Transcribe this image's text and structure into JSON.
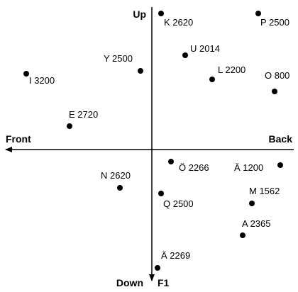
{
  "axes": {
    "up": "Up",
    "down": "Down",
    "front": "Front",
    "back": "Back",
    "down_suffix": "F1"
  },
  "points": [
    {
      "label": "K 2620"
    },
    {
      "label": "P 2500"
    },
    {
      "label": "U 2014"
    },
    {
      "label": "Y 2500"
    },
    {
      "label": "L 2200"
    },
    {
      "label": "I 3200"
    },
    {
      "label": "O 800"
    },
    {
      "label": "E 2720"
    },
    {
      "label": "Ö 2266"
    },
    {
      "label": "Ä 1200"
    },
    {
      "label": "N 2620"
    },
    {
      "label": "Q 2500"
    },
    {
      "label": "M 1562"
    },
    {
      "label": "A 2365"
    },
    {
      "label": "Ä 2269"
    }
  ]
}
